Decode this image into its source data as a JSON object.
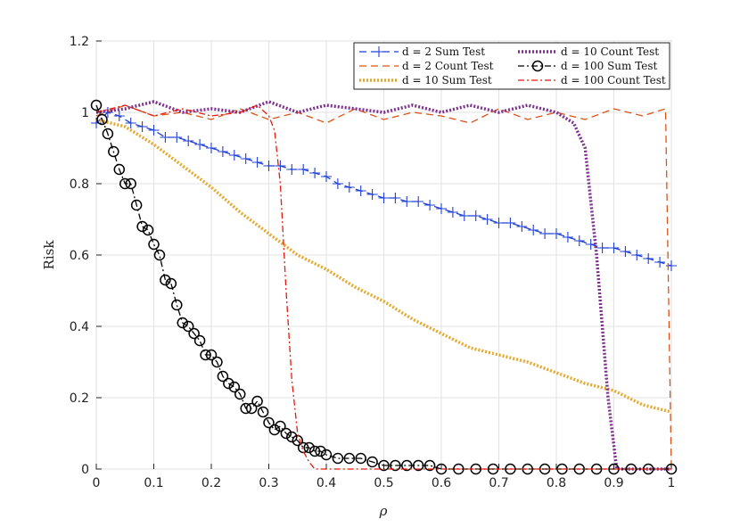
{
  "chart_data": {
    "type": "line",
    "xlabel": "ρ",
    "ylabel": "Risk",
    "xlim": [
      0,
      1
    ],
    "ylim": [
      0,
      1.2
    ],
    "xticks": [
      "0",
      "0.1",
      "0.2",
      "0.3",
      "0.4",
      "0.5",
      "0.6",
      "0.7",
      "0.8",
      "0.9",
      "1"
    ],
    "yticks": [
      "0",
      "0.2",
      "0.4",
      "0.6",
      "0.8",
      "1",
      "1.2"
    ],
    "grid": true,
    "legend_position": "top-right",
    "series": [
      {
        "name": "d = 2 Sum Test",
        "color": "#1f3fd6",
        "style": "dash-plus",
        "x": [
          0,
          0.02,
          0.04,
          0.06,
          0.08,
          0.1,
          0.12,
          0.14,
          0.16,
          0.18,
          0.2,
          0.22,
          0.24,
          0.26,
          0.28,
          0.3,
          0.32,
          0.34,
          0.36,
          0.38,
          0.4,
          0.42,
          0.44,
          0.46,
          0.48,
          0.5,
          0.52,
          0.54,
          0.56,
          0.58,
          0.6,
          0.62,
          0.64,
          0.66,
          0.68,
          0.7,
          0.72,
          0.74,
          0.76,
          0.78,
          0.8,
          0.82,
          0.84,
          0.86,
          0.88,
          0.9,
          0.92,
          0.94,
          0.96,
          0.98,
          1
        ],
        "y": [
          0.97,
          1.0,
          0.99,
          0.97,
          0.96,
          0.95,
          0.93,
          0.93,
          0.92,
          0.91,
          0.9,
          0.89,
          0.88,
          0.87,
          0.86,
          0.85,
          0.85,
          0.84,
          0.84,
          0.83,
          0.82,
          0.8,
          0.79,
          0.78,
          0.77,
          0.76,
          0.76,
          0.75,
          0.75,
          0.74,
          0.73,
          0.72,
          0.71,
          0.71,
          0.7,
          0.69,
          0.69,
          0.68,
          0.67,
          0.66,
          0.66,
          0.65,
          0.64,
          0.63,
          0.62,
          0.62,
          0.61,
          0.6,
          0.59,
          0.58,
          0.57
        ]
      },
      {
        "name": "d = 2 Count Test",
        "color": "#d95319",
        "style": "dash",
        "x": [
          0,
          0.05,
          0.1,
          0.15,
          0.2,
          0.25,
          0.3,
          0.35,
          0.4,
          0.45,
          0.5,
          0.55,
          0.6,
          0.65,
          0.7,
          0.75,
          0.8,
          0.85,
          0.9,
          0.95,
          0.99,
          0.995,
          1
        ],
        "y": [
          0.99,
          1.02,
          0.99,
          1.0,
          0.98,
          1.01,
          0.98,
          1.0,
          0.97,
          1.01,
          0.98,
          1.0,
          0.99,
          0.97,
          1.01,
          0.98,
          1.0,
          0.98,
          1.01,
          0.99,
          1.01,
          0.5,
          0.0
        ]
      },
      {
        "name": "d = 10 Sum Test",
        "color": "#e6a82c",
        "style": "dotted",
        "x": [
          0,
          0.05,
          0.1,
          0.15,
          0.2,
          0.25,
          0.3,
          0.35,
          0.4,
          0.45,
          0.5,
          0.55,
          0.6,
          0.65,
          0.7,
          0.75,
          0.8,
          0.85,
          0.9,
          0.95,
          1
        ],
        "y": [
          0.98,
          0.96,
          0.91,
          0.85,
          0.79,
          0.72,
          0.66,
          0.6,
          0.56,
          0.51,
          0.47,
          0.42,
          0.38,
          0.34,
          0.32,
          0.3,
          0.27,
          0.24,
          0.22,
          0.18,
          0.16
        ]
      },
      {
        "name": "d = 10 Count Test",
        "color": "#7e2f8e",
        "style": "dotted",
        "x": [
          0,
          0.05,
          0.1,
          0.15,
          0.2,
          0.25,
          0.3,
          0.35,
          0.4,
          0.45,
          0.5,
          0.55,
          0.6,
          0.65,
          0.7,
          0.75,
          0.8,
          0.83,
          0.85,
          0.87,
          0.89,
          0.905,
          0.92,
          0.95,
          1
        ],
        "y": [
          1.0,
          1.01,
          1.03,
          1.0,
          1.01,
          1.0,
          1.03,
          1.0,
          1.02,
          1.01,
          1.0,
          1.02,
          1.0,
          1.02,
          1.0,
          1.02,
          1.0,
          0.97,
          0.9,
          0.6,
          0.2,
          0.0,
          0.0,
          0.0,
          0.0
        ]
      },
      {
        "name": "d = 100 Sum Test",
        "color": "#000000",
        "style": "dashdot-circle",
        "x": [
          0,
          0.01,
          0.02,
          0.03,
          0.04,
          0.05,
          0.06,
          0.07,
          0.08,
          0.09,
          0.1,
          0.11,
          0.12,
          0.13,
          0.14,
          0.15,
          0.16,
          0.17,
          0.18,
          0.19,
          0.2,
          0.21,
          0.22,
          0.23,
          0.24,
          0.25,
          0.26,
          0.27,
          0.28,
          0.29,
          0.3,
          0.31,
          0.32,
          0.33,
          0.34,
          0.35,
          0.36,
          0.37,
          0.38,
          0.39,
          0.4,
          0.42,
          0.44,
          0.46,
          0.48,
          0.5,
          0.52,
          0.54,
          0.56,
          0.58,
          0.6,
          0.63,
          0.66,
          0.69,
          0.72,
          0.75,
          0.78,
          0.81,
          0.84,
          0.87,
          0.9,
          0.93,
          0.96,
          1
        ],
        "y": [
          1.02,
          0.98,
          0.94,
          0.89,
          0.84,
          0.8,
          0.8,
          0.74,
          0.68,
          0.67,
          0.63,
          0.6,
          0.53,
          0.52,
          0.46,
          0.41,
          0.4,
          0.38,
          0.36,
          0.32,
          0.32,
          0.3,
          0.26,
          0.24,
          0.23,
          0.21,
          0.17,
          0.17,
          0.19,
          0.16,
          0.13,
          0.11,
          0.12,
          0.1,
          0.09,
          0.08,
          0.06,
          0.06,
          0.05,
          0.05,
          0.04,
          0.03,
          0.03,
          0.03,
          0.02,
          0.01,
          0.01,
          0.01,
          0.01,
          0.01,
          0.0,
          0.0,
          0.0,
          0.0,
          0.0,
          0.0,
          0.0,
          0.0,
          0.0,
          0.0,
          0.0,
          0.0,
          0.0,
          0.0
        ]
      },
      {
        "name": "d = 100 Count Test",
        "color": "#e8190f",
        "style": "dashdot",
        "x": [
          0,
          0.05,
          0.1,
          0.15,
          0.2,
          0.25,
          0.28,
          0.3,
          0.31,
          0.32,
          0.33,
          0.34,
          0.35,
          0.36,
          0.37,
          0.38,
          0.4,
          0.5,
          0.6,
          0.7,
          0.8,
          0.9,
          1
        ],
        "y": [
          1.0,
          1.02,
          0.99,
          1.01,
          0.99,
          1.0,
          1.02,
          0.99,
          0.95,
          0.8,
          0.5,
          0.25,
          0.1,
          0.05,
          0.02,
          0.0,
          0.0,
          0.0,
          0.0,
          0.0,
          0.0,
          0.0,
          0.0
        ]
      }
    ]
  }
}
